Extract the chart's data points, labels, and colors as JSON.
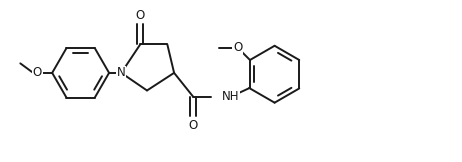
{
  "background": "#ffffff",
  "line_color": "#1a1a1a",
  "line_width": 1.4,
  "font_size": 8.5,
  "figsize": [
    4.62,
    1.62
  ],
  "dpi": 100,
  "xlim": [
    -2.6,
    4.2
  ],
  "ylim": [
    -1.05,
    1.05
  ]
}
